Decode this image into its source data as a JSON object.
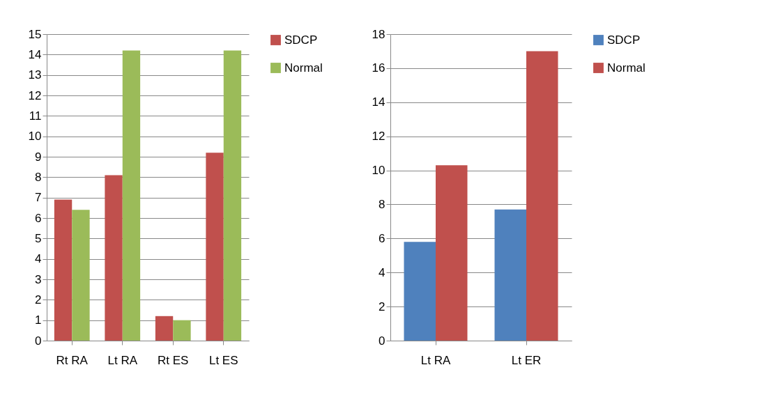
{
  "chart_data": [
    {
      "type": "bar",
      "categories": [
        "Rt RA",
        "Lt RA",
        "Rt ES",
        "Lt ES"
      ],
      "series": [
        {
          "name": "SDCP",
          "color": "#c0504d",
          "values": [
            6.9,
            8.1,
            1.2,
            9.2
          ]
        },
        {
          "name": "Normal",
          "color": "#9bbb59",
          "values": [
            6.4,
            14.2,
            1.0,
            14.2
          ]
        }
      ],
      "ylim": [
        0,
        15
      ],
      "yticks": [
        0,
        1,
        2,
        3,
        4,
        5,
        6,
        7,
        8,
        9,
        10,
        11,
        12,
        13,
        14,
        15
      ],
      "grid": "y",
      "legend": "right"
    },
    {
      "type": "bar",
      "categories": [
        "Lt RA",
        "Lt ER"
      ],
      "series": [
        {
          "name": "SDCP",
          "color": "#4f81bd",
          "values": [
            5.8,
            7.7
          ]
        },
        {
          "name": "Normal",
          "color": "#c0504d",
          "values": [
            10.3,
            17.0
          ]
        }
      ],
      "ylim": [
        0,
        18
      ],
      "yticks": [
        0,
        2,
        4,
        6,
        8,
        10,
        12,
        14,
        16,
        18
      ],
      "grid": "y",
      "legend": "right"
    }
  ]
}
